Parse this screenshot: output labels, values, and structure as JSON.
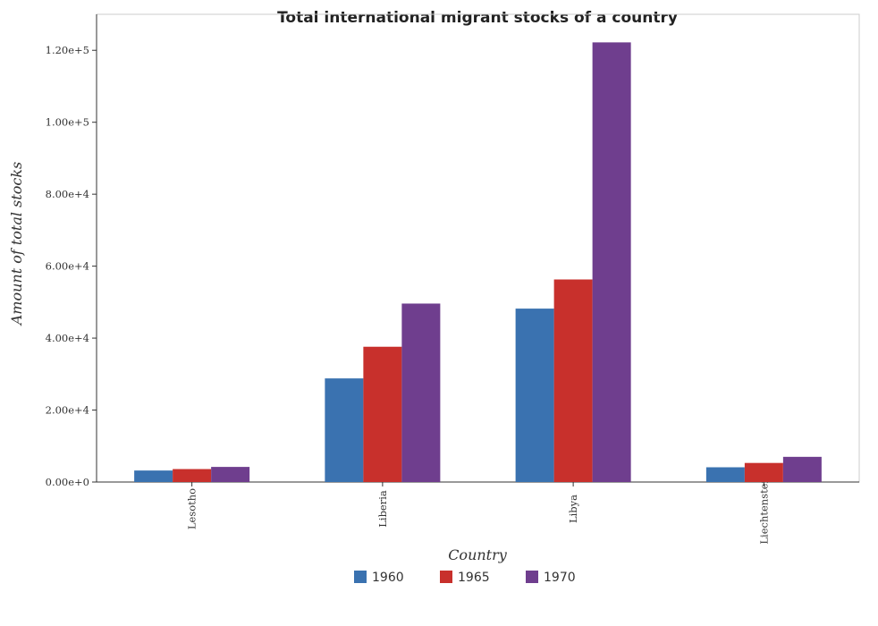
{
  "chart_data": {
    "type": "bar",
    "title": "Total international migrant stocks of a country",
    "xlabel": "Country",
    "ylabel": "Amount of total stocks",
    "categories": [
      "Lesotho",
      "Liberia",
      "Libya",
      "Liechtenstein"
    ],
    "series": [
      {
        "name": "1960",
        "color": "#3a72b0",
        "values": [
          3200,
          28800,
          48200,
          4100
        ]
      },
      {
        "name": "1965",
        "color": "#c8302c",
        "values": [
          3600,
          37600,
          56300,
          5300
        ]
      },
      {
        "name": "1970",
        "color": "#6f3e8e",
        "values": [
          4200,
          49600,
          122200,
          7000
        ]
      }
    ],
    "y_ticks": [
      0,
      20000,
      40000,
      60000,
      80000,
      100000,
      120000
    ],
    "y_tick_labels": [
      "0.00e+0",
      "2.00e+4",
      "4.00e+4",
      "6.00e+4",
      "8.00e+4",
      "1.00e+5",
      "1.20e+5"
    ],
    "ylim": [
      0,
      130000
    ],
    "grid": false,
    "legend_position": "bottom-center"
  }
}
